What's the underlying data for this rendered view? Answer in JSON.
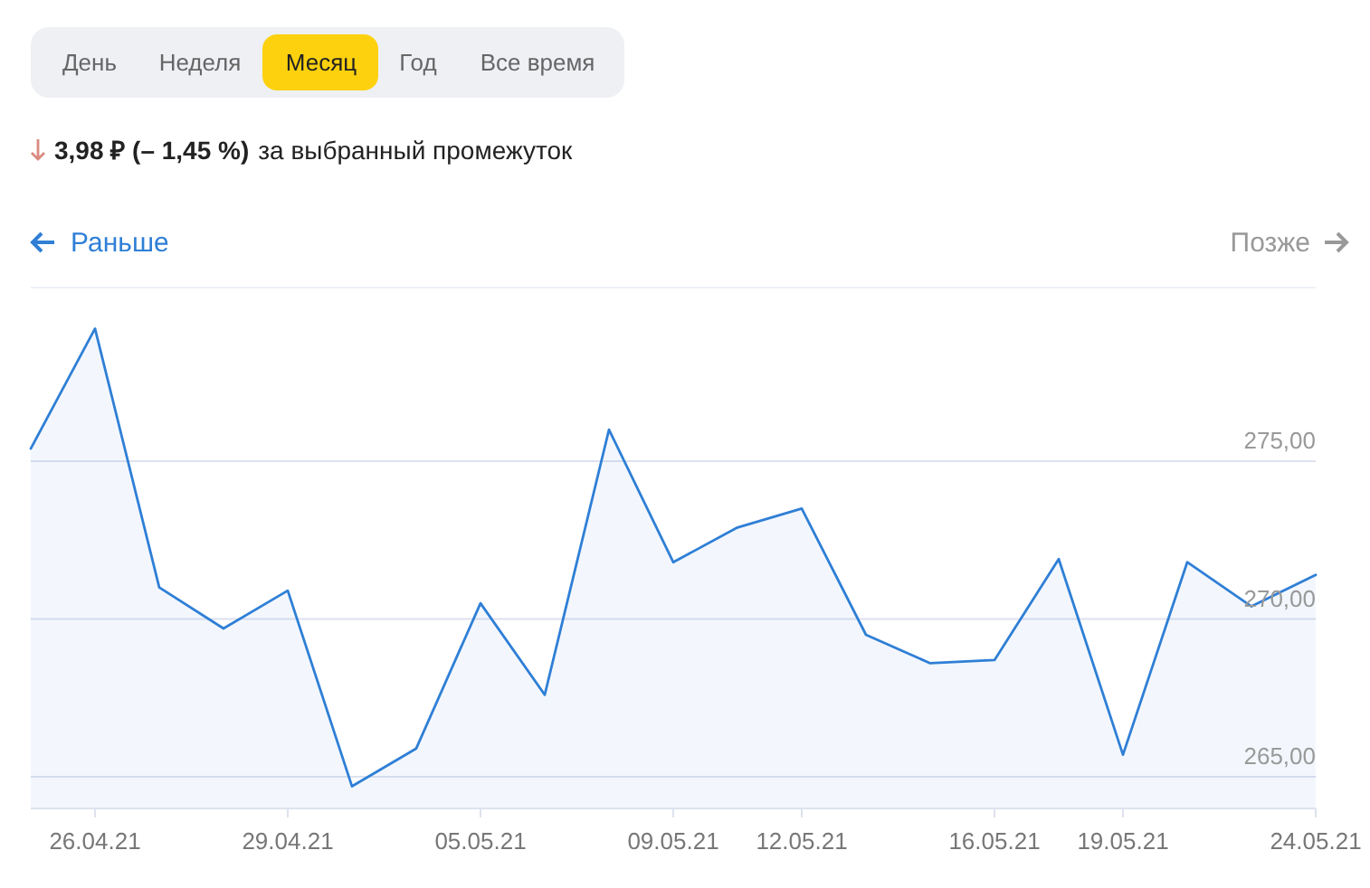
{
  "chart_data": {
    "type": "area",
    "color": "#2f7fd6",
    "categories": [
      null,
      "26.04.21",
      null,
      null,
      "29.04.21",
      null,
      null,
      "05.05.21",
      null,
      null,
      "09.05.21",
      null,
      "12.05.21",
      null,
      null,
      "16.05.21",
      null,
      "19.05.21",
      null,
      null,
      "24.05.21"
    ],
    "values": [
      275.4,
      279.2,
      271.0,
      269.7,
      270.9,
      264.7,
      265.9,
      270.5,
      267.6,
      276.0,
      271.8,
      272.9,
      273.5,
      269.5,
      268.6,
      268.7,
      271.9,
      265.7,
      271.8,
      270.4,
      271.4
    ],
    "ylim": [
      264,
      280.5
    ],
    "yticks": [
      {
        "value": 265,
        "label": "265,00"
      },
      {
        "value": 270,
        "label": "270,00"
      },
      {
        "value": 275,
        "label": "275,00"
      }
    ],
    "grid": "y",
    "annotations": [
      "День",
      "Неделя",
      "Месяц",
      "Год",
      "Все время",
      "3,98 ₽ (– 1,45 %)",
      "за выбранный промежуток",
      "Раньше",
      "Позже"
    ]
  }
}
